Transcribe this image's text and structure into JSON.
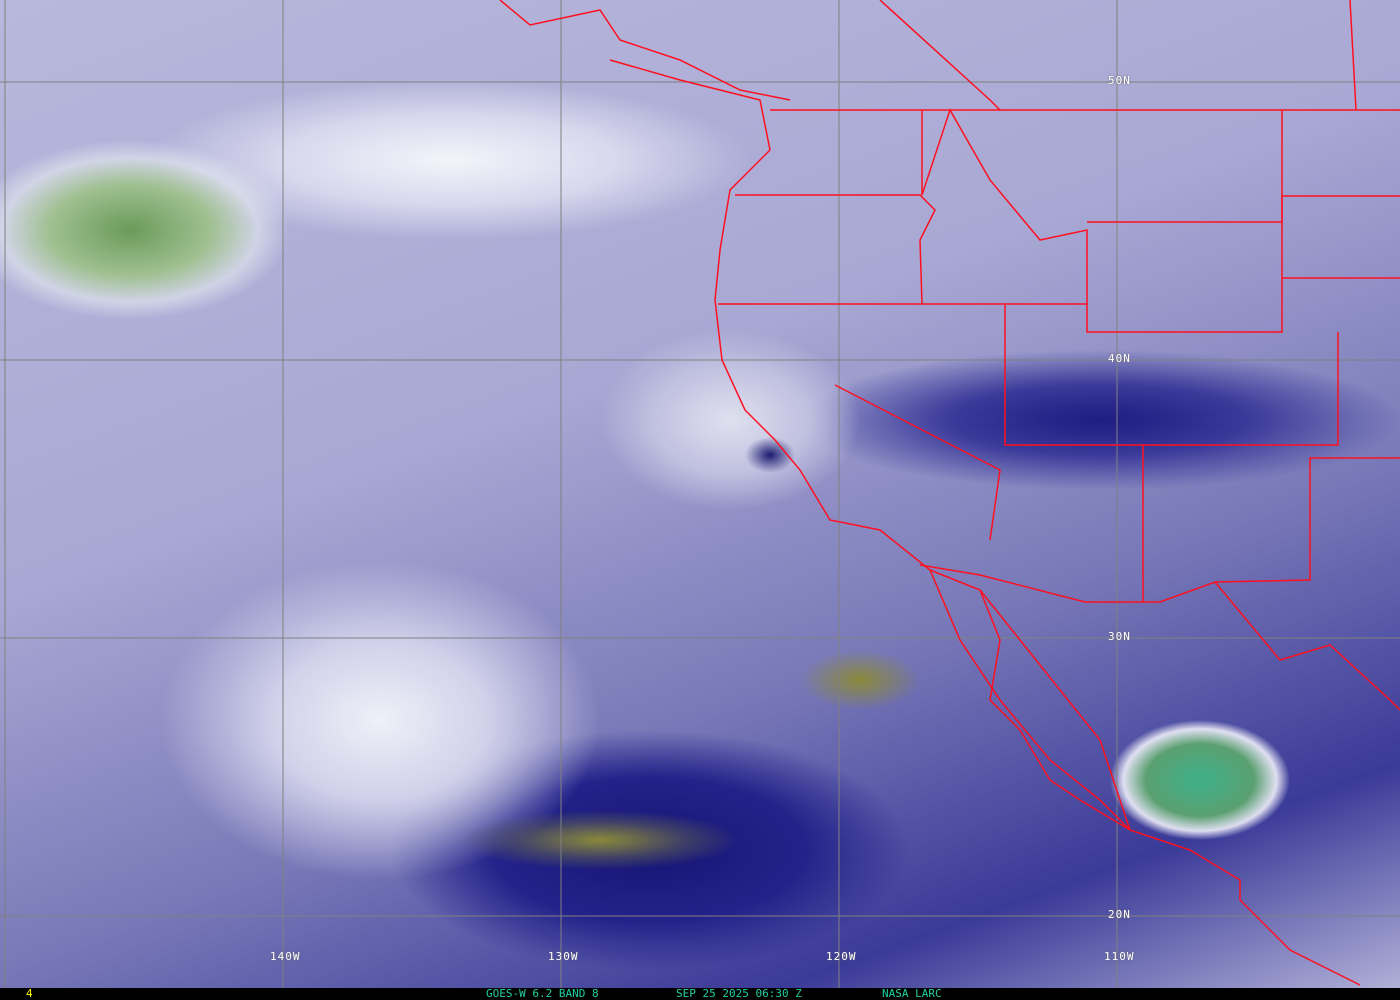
{
  "map": {
    "latitude_labels": [
      "50N",
      "40N",
      "30N",
      "20N"
    ],
    "longitude_labels": [
      "140W",
      "130W",
      "120W",
      "110W"
    ],
    "border_color": "#ff1020",
    "grid_color": "#808080"
  },
  "infobar": {
    "frame_number": "4",
    "satellite_band": "GOES-W 6.2 BAND 8",
    "timestamp": "SEP 25 2025 06:30 Z",
    "source": "NASA LARC",
    "text_color": "#20d0a0",
    "frame_color": "#ffff00"
  }
}
